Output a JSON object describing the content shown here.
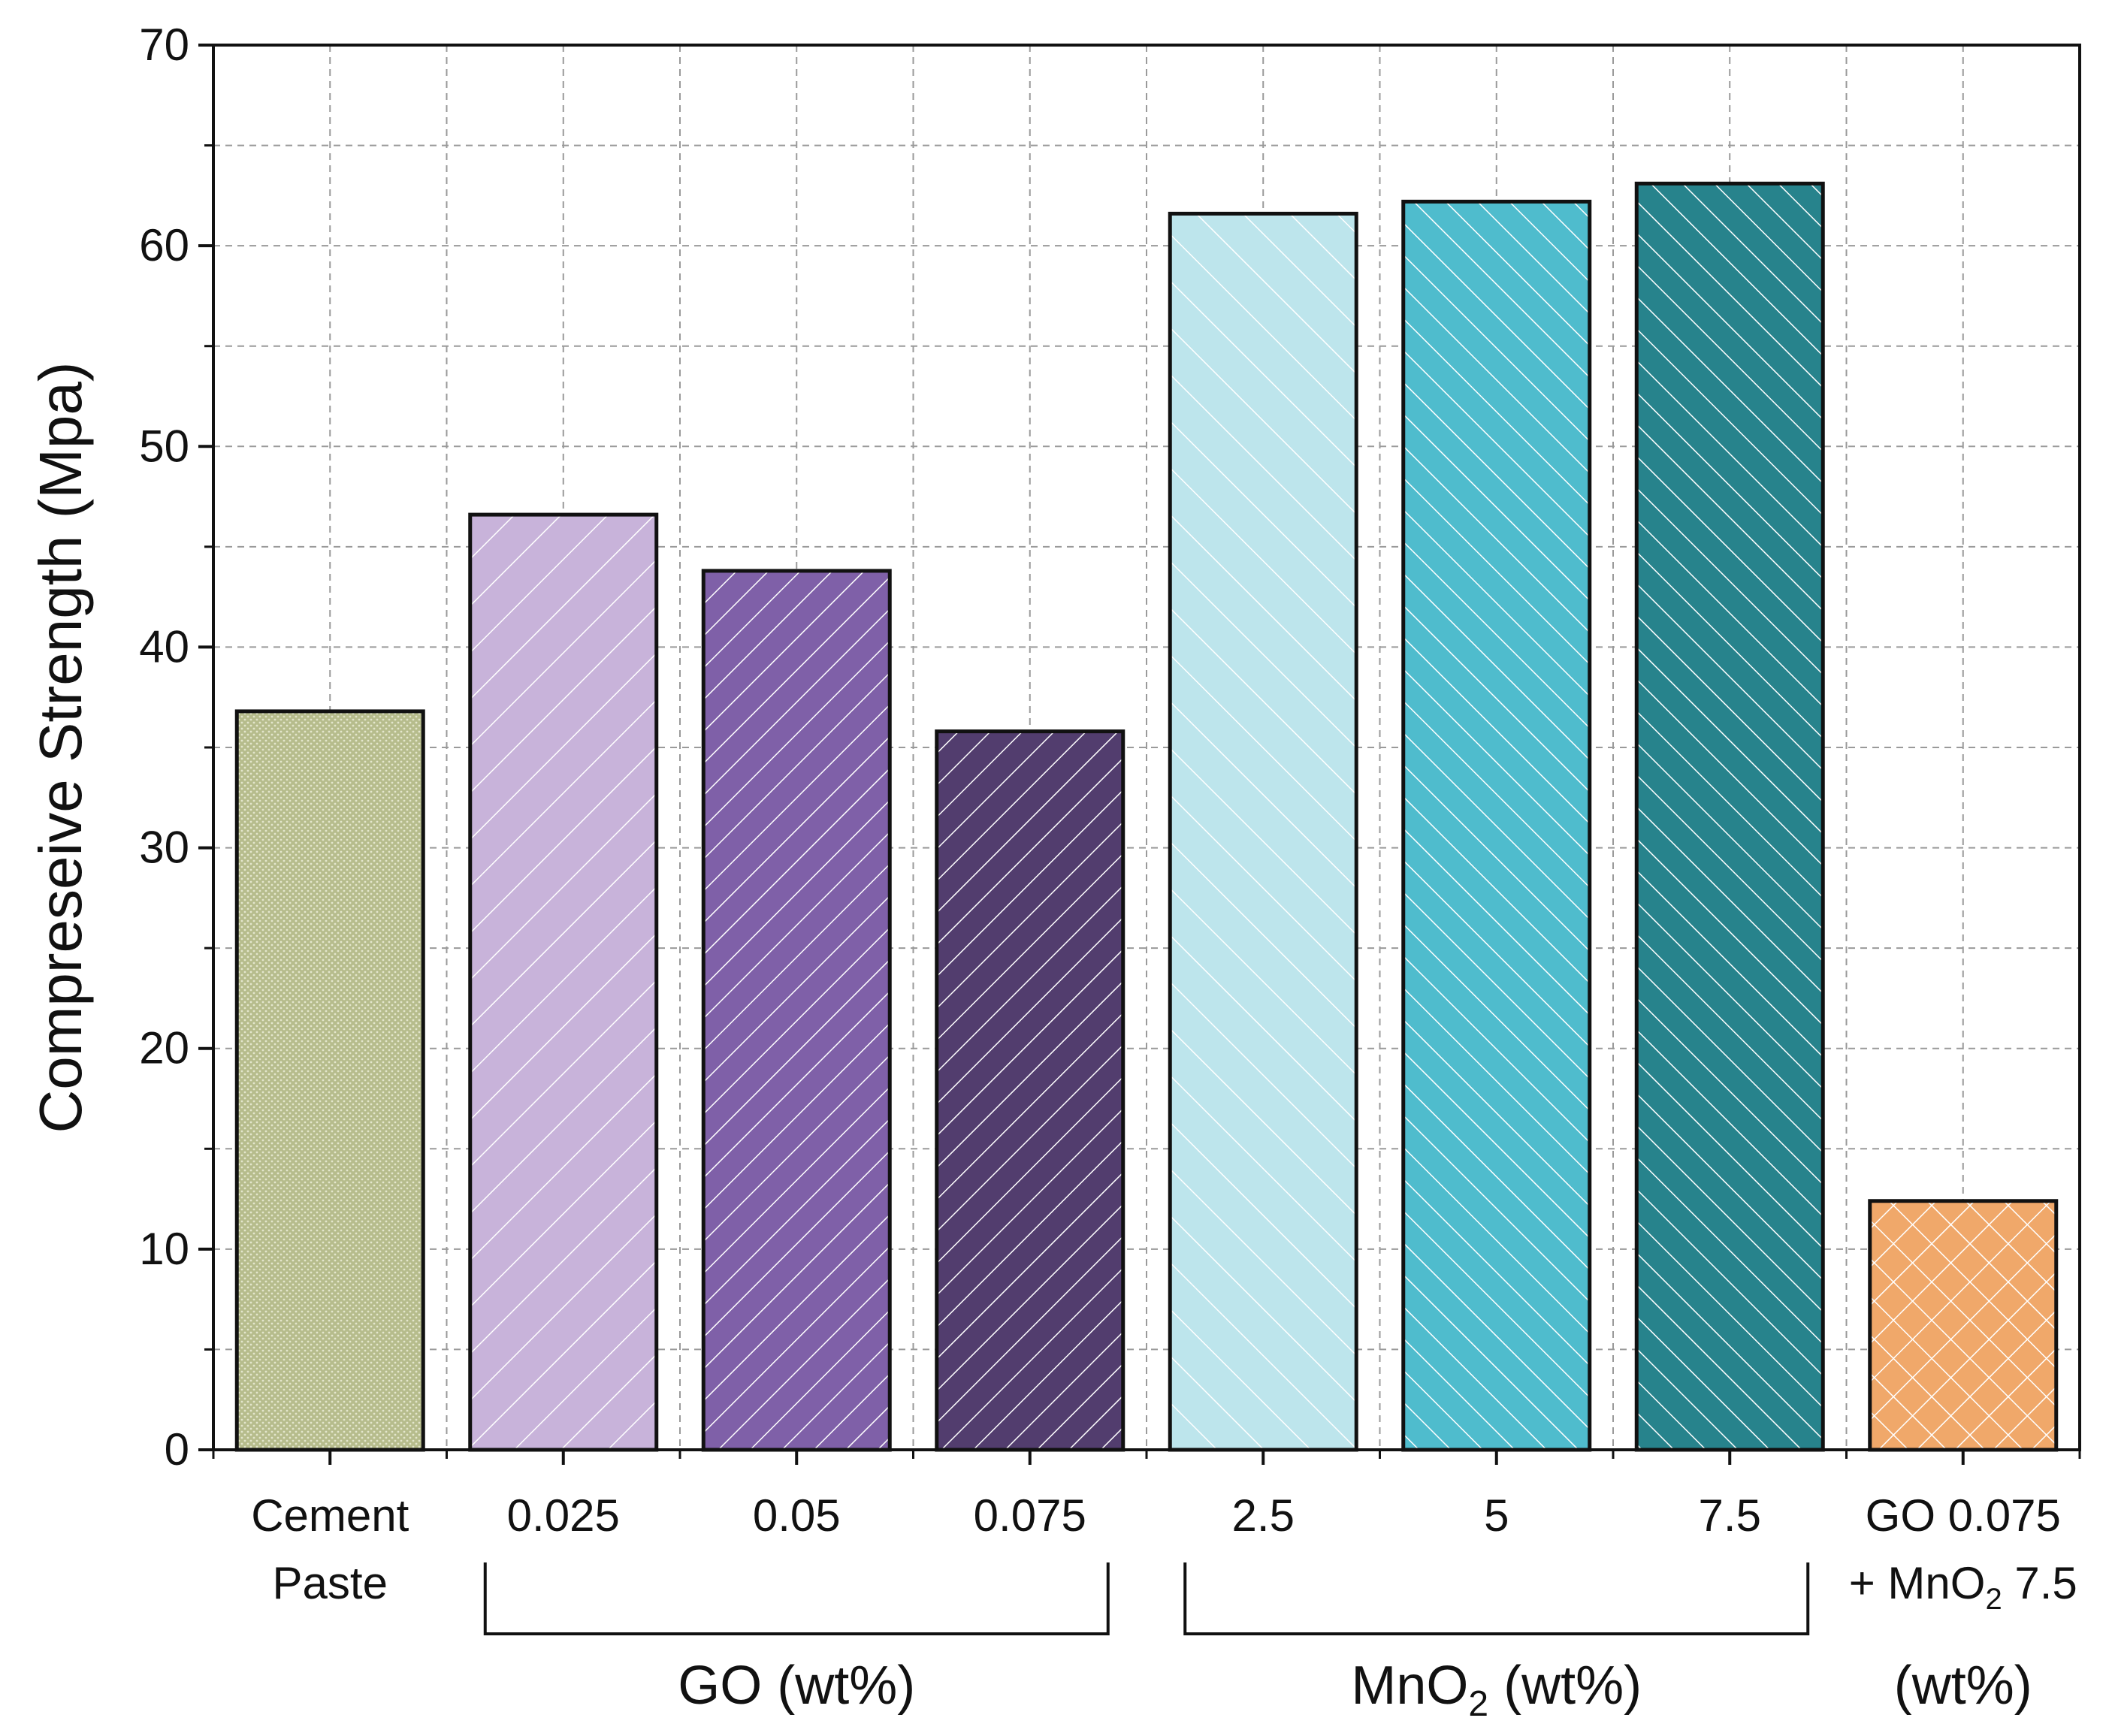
{
  "chart_data": {
    "type": "bar",
    "ylabel": "Compreseive Strength (Mpa)",
    "ylim": [
      0,
      70
    ],
    "yticks": [
      0,
      10,
      20,
      30,
      40,
      50,
      60,
      70
    ],
    "grid": true,
    "bars": [
      {
        "line1": "Cement",
        "line2": "Paste",
        "value": 36.8,
        "color": "#b6bc8c",
        "pattern": "dots"
      },
      {
        "line1": "0.025",
        "line2": "",
        "value": 46.6,
        "color": "#c8b3da",
        "pattern": "diag-wide"
      },
      {
        "line1": "0.05",
        "line2": "",
        "value": 43.8,
        "color": "#7f60a8",
        "pattern": "diag"
      },
      {
        "line1": "0.075",
        "line2": "",
        "value": 35.8,
        "color": "#523d6e",
        "pattern": "diag"
      },
      {
        "line1": "2.5",
        "line2": "",
        "value": 61.6,
        "color": "#bde5ec",
        "pattern": "back-wide"
      },
      {
        "line1": "5",
        "line2": "",
        "value": 62.2,
        "color": "#4fbccd",
        "pattern": "back"
      },
      {
        "line1": "7.5",
        "line2": "",
        "value": 63.1,
        "color": "#27838c",
        "pattern": "back"
      },
      {
        "line1": "GO 0.075",
        "line2": "+ MnO",
        "line2_sub": "2",
        "line2_tail": " 7.5",
        "value": 12.4,
        "color": "#f0a86a",
        "pattern": "cross"
      }
    ],
    "groups": [
      {
        "label": "GO (wt%)",
        "from": 1,
        "to": 3
      },
      {
        "label": "MnO",
        "label_sub": "2",
        "label_tail": " (wt%)",
        "from": 4,
        "to": 6
      }
    ],
    "last_group_label": "(wt%)"
  }
}
